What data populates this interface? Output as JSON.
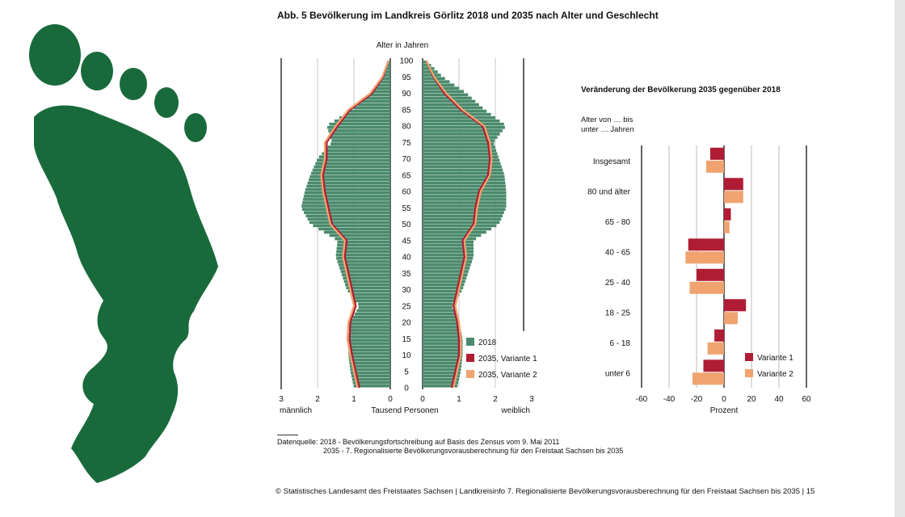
{
  "title": "Abb. 5 Bevölkerung im Landkreis Görlitz 2018 und 2035 nach Alter und Geschlecht",
  "source": {
    "line1": "Datenquelle: 2018 - Bevölkerungsfortschreibung auf Basis des Zensus vom 9. Mai 2011",
    "line2": "2035 - 7. Regionalisierte Bevölkerungsvorausberechnung für den Freistaat Sachsen bis 2035"
  },
  "footer": "© Statistisches Landesamt des Freistaates Sachsen | Landkreisinfo 7. Regionalisierte Bevölkerungsvorausberechnung für den Freistaat Sachsen bis 2035 | 15",
  "colors": {
    "bar2018": "#4a8a6c",
    "v1": "#b01c33",
    "v2": "#f0a36f",
    "logo": "#186a3b"
  },
  "chart_data": [
    {
      "type": "bar",
      "subtype": "population-pyramid",
      "title": "",
      "age_axis_label": "Alter in Jahren",
      "xlabel": "Tausend Personen",
      "left_label": "männlich",
      "right_label": "weiblich",
      "xlim": [
        0,
        3
      ],
      "x_ticks": [
        3,
        2,
        1,
        0
      ],
      "age_ticks": [
        0,
        5,
        10,
        15,
        20,
        25,
        30,
        35,
        40,
        45,
        50,
        55,
        60,
        65,
        70,
        75,
        80,
        85,
        90,
        95,
        100
      ],
      "age_range": [
        0,
        100
      ],
      "legend": [
        "2018",
        "2035, Variante 1",
        "2035, Variante 2"
      ],
      "legend_position": "bottom-right",
      "series": [
        {
          "name": "2018",
          "sex": "männlich",
          "age_points": [
            0,
            5,
            10,
            15,
            20,
            25,
            30,
            35,
            40,
            45,
            50,
            55,
            60,
            65,
            70,
            75,
            80,
            85,
            90,
            95,
            100
          ],
          "values": [
            1.0,
            1.1,
            1.15,
            1.15,
            1.1,
            0.85,
            1.2,
            1.35,
            1.5,
            1.45,
            2.2,
            2.45,
            2.35,
            2.2,
            2.0,
            1.6,
            1.75,
            1.05,
            0.55,
            0.2,
            0.05
          ]
        },
        {
          "name": "2018",
          "sex": "weiblich",
          "age_points": [
            0,
            5,
            10,
            15,
            20,
            25,
            30,
            35,
            40,
            45,
            50,
            55,
            60,
            65,
            70,
            75,
            80,
            85,
            90,
            95,
            100
          ],
          "values": [
            0.95,
            1.05,
            1.1,
            1.1,
            1.0,
            0.8,
            1.1,
            1.25,
            1.4,
            1.4,
            2.1,
            2.3,
            2.3,
            2.25,
            2.1,
            1.95,
            2.3,
            1.7,
            1.2,
            0.55,
            0.1
          ]
        },
        {
          "name": "2035, Variante 1",
          "sex": "männlich",
          "age_points": [
            0,
            5,
            10,
            15,
            20,
            25,
            30,
            35,
            40,
            45,
            50,
            55,
            60,
            65,
            70,
            75,
            80,
            85,
            90,
            95,
            100
          ],
          "values": [
            0.85,
            0.95,
            1.05,
            1.12,
            1.1,
            0.95,
            1.05,
            1.15,
            1.25,
            1.2,
            1.6,
            1.7,
            1.8,
            1.85,
            1.75,
            1.75,
            1.45,
            1.1,
            0.5,
            0.2,
            0.05
          ]
        },
        {
          "name": "2035, Variante 1",
          "sex": "weiblich",
          "age_points": [
            0,
            5,
            10,
            15,
            20,
            25,
            30,
            35,
            40,
            45,
            50,
            55,
            60,
            65,
            70,
            75,
            80,
            85,
            90,
            95,
            100
          ],
          "values": [
            0.8,
            0.9,
            1.0,
            1.0,
            0.95,
            0.85,
            0.95,
            1.05,
            1.15,
            1.1,
            1.4,
            1.45,
            1.55,
            1.8,
            1.85,
            1.8,
            1.65,
            1.05,
            0.6,
            0.3,
            0.1
          ]
        },
        {
          "name": "2035, Variante 2",
          "sex": "männlich",
          "age_points": [
            0,
            5,
            10,
            15,
            20,
            25,
            30,
            35,
            40,
            45,
            50,
            55,
            60,
            65,
            70,
            75,
            80,
            85,
            90,
            95,
            100
          ],
          "values": [
            0.9,
            1.0,
            1.1,
            1.18,
            1.15,
            1.0,
            1.1,
            1.2,
            1.3,
            1.25,
            1.65,
            1.75,
            1.85,
            1.9,
            1.8,
            1.8,
            1.5,
            1.15,
            0.55,
            0.22,
            0.05
          ]
        },
        {
          "name": "2035, Variante 2",
          "sex": "weiblich",
          "age_points": [
            0,
            5,
            10,
            15,
            20,
            25,
            30,
            35,
            40,
            45,
            50,
            55,
            60,
            65,
            70,
            75,
            80,
            85,
            90,
            95,
            100
          ],
          "values": [
            0.85,
            0.95,
            1.05,
            1.05,
            1.0,
            0.9,
            1.0,
            1.1,
            1.2,
            1.15,
            1.45,
            1.5,
            1.6,
            1.85,
            1.9,
            1.85,
            1.7,
            1.1,
            0.65,
            0.32,
            0.1
          ]
        }
      ]
    },
    {
      "type": "bar",
      "orientation": "horizontal",
      "title": "Veränderung der Bevölkerung 2035 gegenüber 2018",
      "category_label": "Alter von … bis unter … Jahren",
      "xlabel": "Prozent",
      "xlim": [
        -60,
        60
      ],
      "x_ticks": [
        -60,
        -40,
        -20,
        0,
        20,
        40,
        60
      ],
      "grid": true,
      "categories": [
        "Insgesamt",
        "80 und älter",
        "65 - 80",
        "40 - 65",
        "25 - 40",
        "18 - 25",
        "6 - 18",
        "unter 6"
      ],
      "legend": [
        "Variante 1",
        "Variante 2"
      ],
      "legend_position": "bottom-right",
      "series": [
        {
          "name": "Variante 1",
          "values": [
            -10,
            14,
            5,
            -26,
            -20,
            16,
            -7,
            -15
          ]
        },
        {
          "name": "Variante 2",
          "values": [
            -13,
            14,
            4,
            -28,
            -25,
            10,
            -12,
            -23
          ]
        }
      ]
    }
  ]
}
